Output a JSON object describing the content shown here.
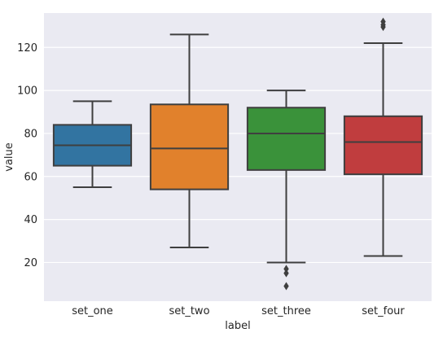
{
  "chart_data": {
    "type": "box",
    "title": "",
    "xlabel": "label",
    "ylabel": "value",
    "ylim": [
      2,
      136
    ],
    "yticks": [
      20,
      40,
      60,
      80,
      100,
      120
    ],
    "grid": true,
    "legend": "none",
    "categories": [
      "set_one",
      "set_two",
      "set_three",
      "set_four"
    ],
    "boxes": [
      {
        "category": "set_one",
        "color": "#3274A1",
        "whisker_low": 55,
        "q1": 65,
        "median": 74.5,
        "q3": 84,
        "whisker_high": 95,
        "outliers": []
      },
      {
        "category": "set_two",
        "color": "#E1812C",
        "whisker_low": 27,
        "q1": 54,
        "median": 73,
        "q3": 93.5,
        "whisker_high": 126,
        "outliers": []
      },
      {
        "category": "set_three",
        "color": "#3A923A",
        "whisker_low": 20,
        "q1": 63,
        "median": 80,
        "q3": 92,
        "whisker_high": 100,
        "outliers": [
          17,
          15,
          9
        ]
      },
      {
        "category": "set_four",
        "color": "#C03D3E",
        "whisker_low": 23,
        "q1": 61,
        "median": 76,
        "q3": 88,
        "whisker_high": 122,
        "outliers": [
          132,
          130.5,
          129.5
        ]
      }
    ],
    "background_color": "#EAEAF2",
    "grid_color": "#FFFFFF",
    "line_color": "#3F3F3F"
  }
}
